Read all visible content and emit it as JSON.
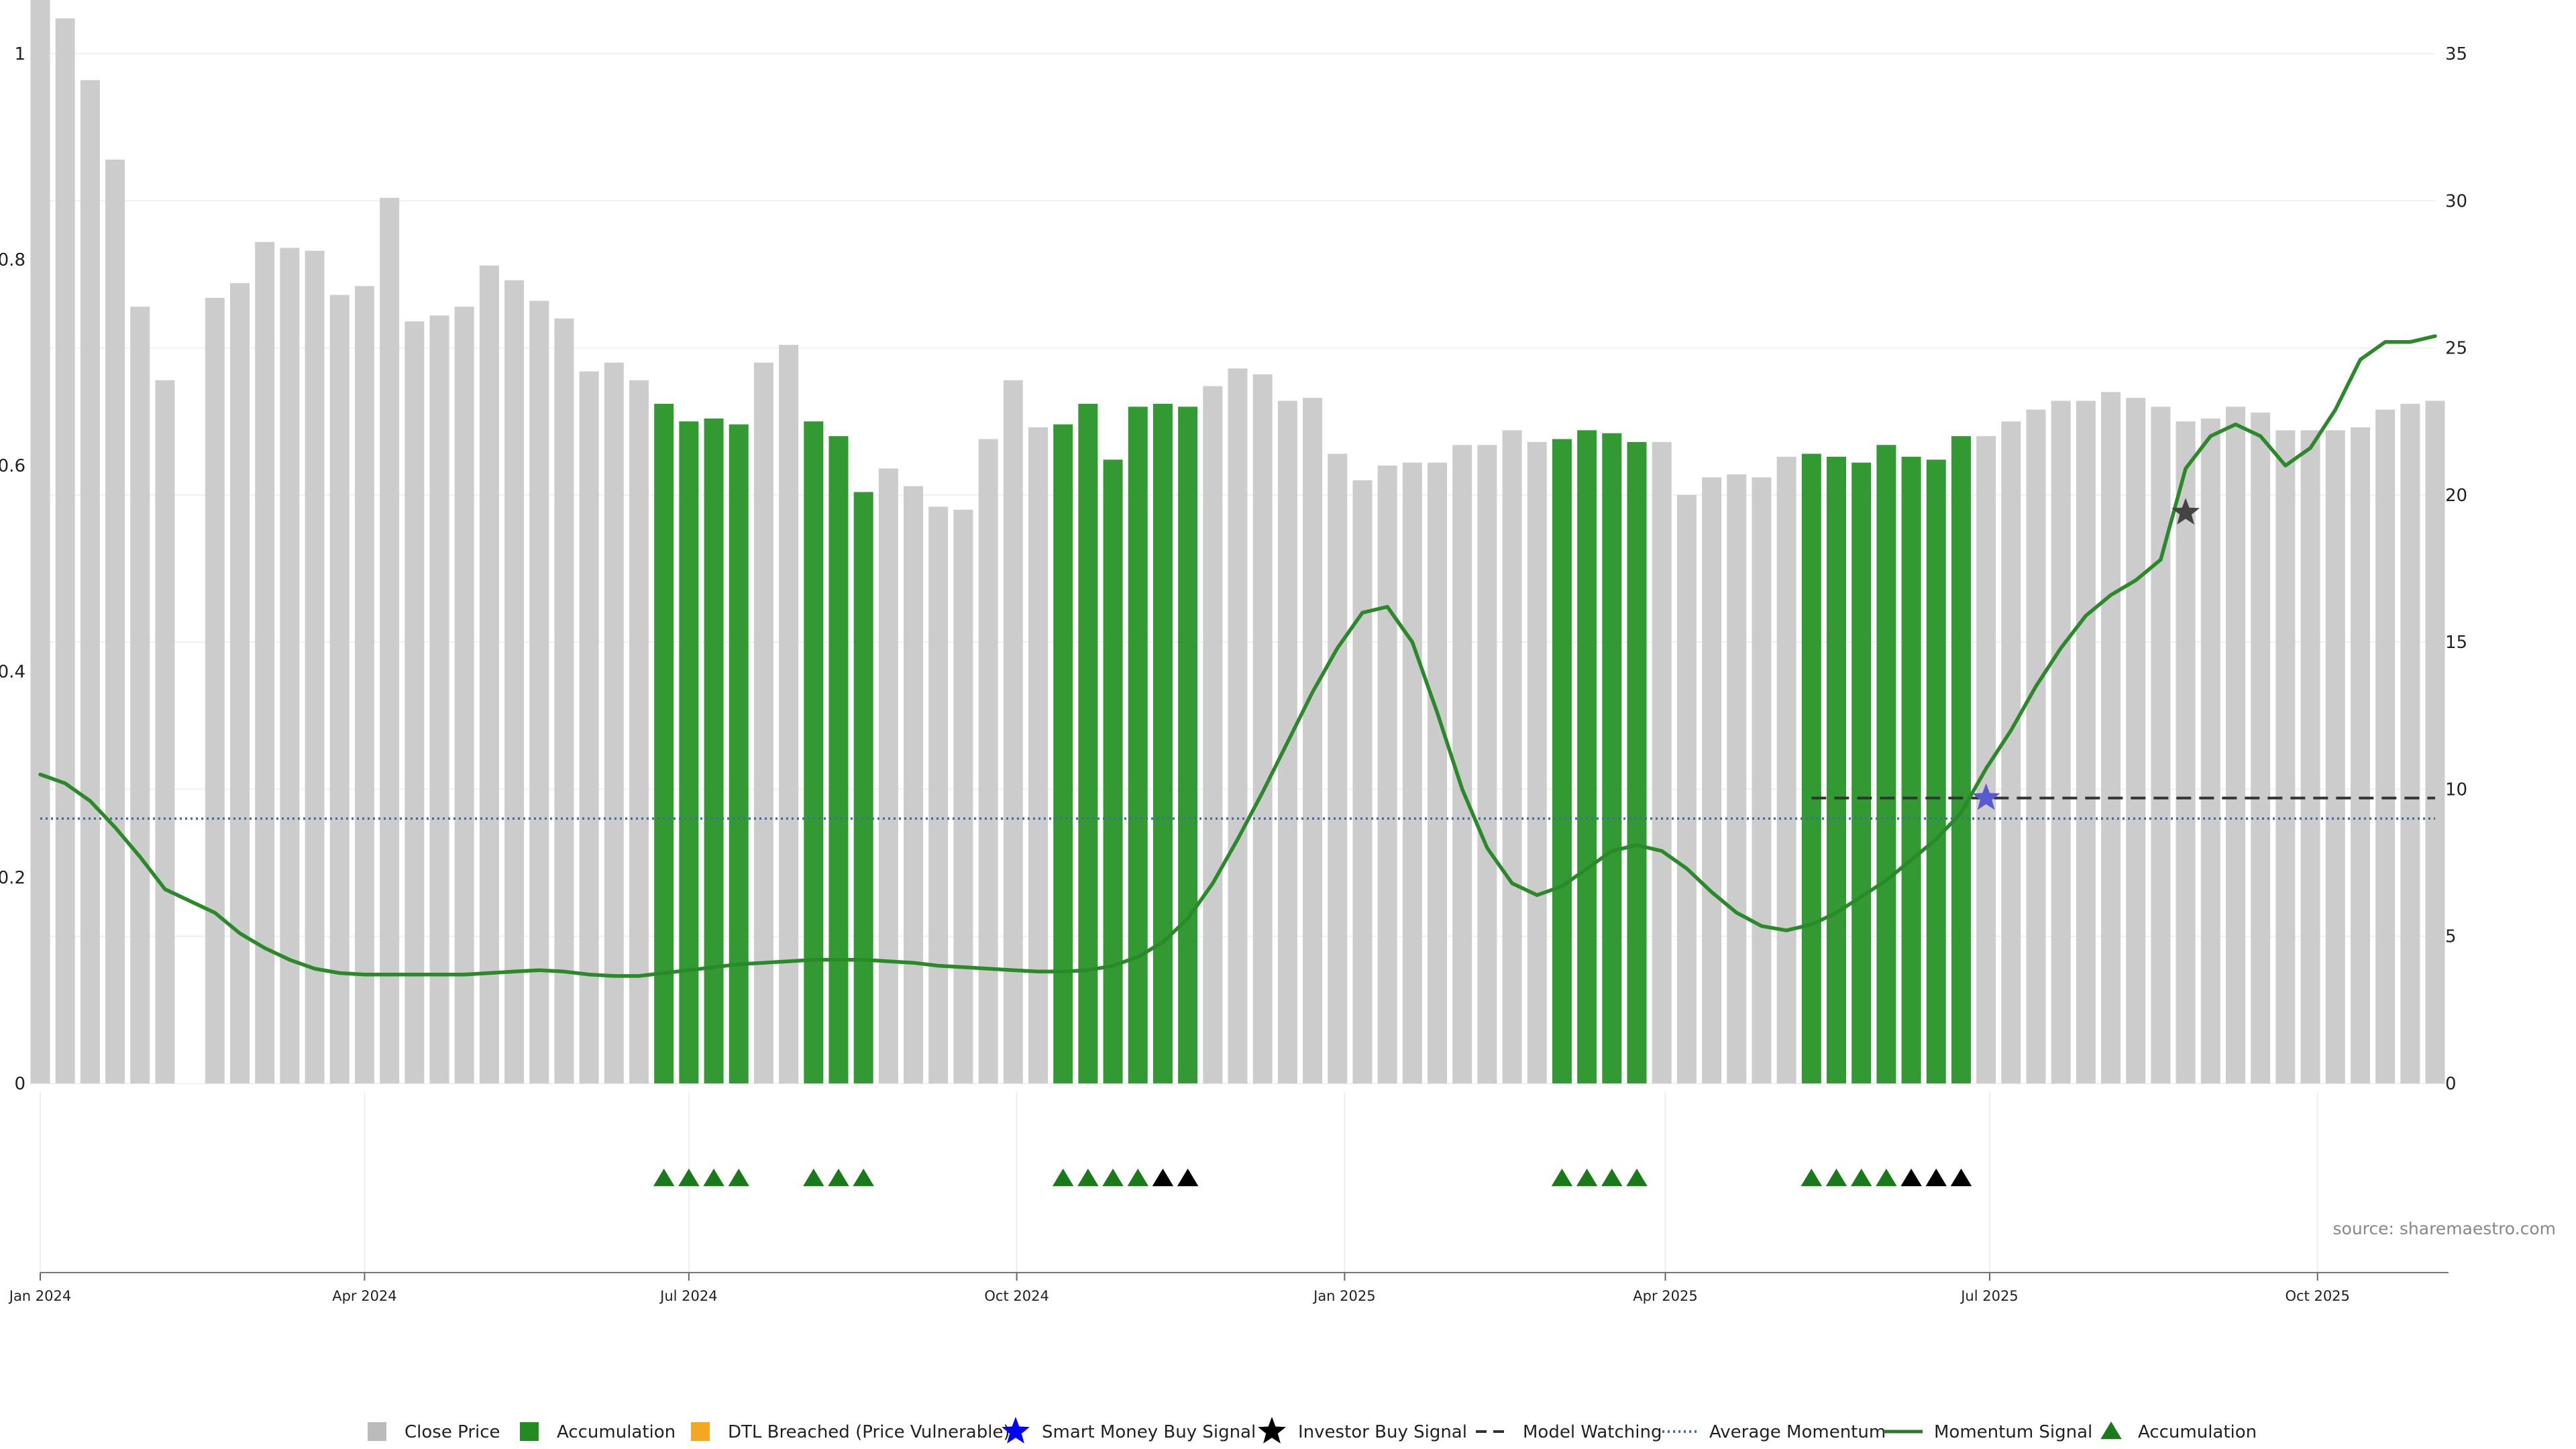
{
  "source_text": "source: sharemaestro.com",
  "colors": {
    "close_price": "#cccccc",
    "accumulation": "#339933",
    "dtl_breached": "#f5a623",
    "smart_money": "#0000ff",
    "smart_money_marker": "#5a5ad0",
    "investor": "#000000",
    "investor_marker": "#444444",
    "model_watching": "#333333",
    "avg_momentum": "#3f6f9f",
    "momentum": "#2a8a2a",
    "accum_triangle": "#1a7a1a",
    "black_triangle": "#000000"
  },
  "legend": [
    {
      "label": "Close Price",
      "symbol": "square",
      "color": "#bbbbbb"
    },
    {
      "label": "Accumulation",
      "symbol": "square",
      "color": "#228b22"
    },
    {
      "label": "DTL Breached (Price Vulnerable)",
      "symbol": "square",
      "color": "#f5a623"
    },
    {
      "label": "Smart Money Buy Signal",
      "symbol": "star",
      "color": "#0000ff"
    },
    {
      "label": "Investor Buy Signal",
      "symbol": "star",
      "color": "#000000"
    },
    {
      "label": "Model Watching",
      "symbol": "dash",
      "color": "#333333"
    },
    {
      "label": "Average Momentum",
      "symbol": "dot",
      "color": "#3f6f9f"
    },
    {
      "label": "Momentum Signal",
      "symbol": "line",
      "color": "#2a7a2a"
    },
    {
      "label": "Accumulation",
      "symbol": "triangle",
      "color": "#1a7a1a"
    }
  ],
  "chart_data": {
    "type": "bar",
    "title": "",
    "xlabel": "",
    "ylabel": "",
    "grid": true,
    "legend_position": "bottom",
    "weeks_start": "2024-01-01",
    "left_axis": {
      "ylim": [
        0,
        1
      ],
      "ticks": [
        "0",
        "0.2",
        "0.4",
        "0.6",
        "0.8",
        "1"
      ]
    },
    "right_axis": {
      "ylim": [
        0,
        35
      ],
      "ticks": [
        "0",
        "5",
        "10",
        "15",
        "20",
        "25",
        "30",
        "35"
      ]
    },
    "x_tick_labels": [
      {
        "label": "Jan 2024",
        "date": "2024-01-01"
      },
      {
        "label": "Apr 2024",
        "date": "2024-04-01"
      },
      {
        "label": "Jul 2024",
        "date": "2024-07-01"
      },
      {
        "label": "Oct 2024",
        "date": "2024-10-01"
      },
      {
        "label": "Jan 2025",
        "date": "2025-01-01"
      },
      {
        "label": "Apr 2025",
        "date": "2025-04-01"
      },
      {
        "label": "Jul 2025",
        "date": "2025-07-01"
      },
      {
        "label": "Oct 2025",
        "date": "2025-10-01"
      }
    ],
    "close_price_weekly": [
      36.9,
      36.2,
      34.1,
      31.4,
      26.4,
      23.9,
      null,
      26.7,
      27.2,
      28.6,
      28.4,
      28.3,
      26.8,
      27.1,
      30.1,
      25.9,
      26.1,
      26.4,
      27.8,
      27.3,
      26.6,
      26.0,
      24.2,
      24.5,
      23.9,
      23.1,
      22.5,
      22.6,
      22.4,
      24.5,
      25.1,
      22.5,
      22.0,
      20.1,
      20.9,
      20.3,
      19.6,
      19.5,
      21.9,
      23.9,
      22.3,
      22.4,
      23.1,
      21.2,
      23.0,
      23.1,
      23.0,
      23.7,
      24.3,
      24.1,
      23.2,
      23.3,
      21.4,
      20.5,
      21.0,
      21.1,
      21.1,
      21.7,
      21.7,
      22.2,
      21.8,
      21.9,
      22.2,
      22.1,
      21.8,
      21.8,
      20.0,
      20.6,
      20.7,
      20.6,
      21.3,
      21.4,
      21.3,
      21.1,
      21.7,
      21.3,
      21.2,
      22.0,
      22.0,
      22.5,
      22.9,
      23.2,
      23.2,
      23.5,
      23.3,
      23.0,
      22.5,
      22.6,
      23.0,
      22.8,
      22.2,
      22.2,
      22.2,
      22.3,
      22.9,
      23.1,
      23.2
    ],
    "accumulation_weeks": [
      25,
      26,
      27,
      28,
      31,
      32,
      33,
      41,
      42,
      43,
      44,
      45,
      46,
      61,
      62,
      63,
      64,
      71,
      72,
      73,
      74,
      75,
      76,
      77
    ],
    "accumulation_triangles_green": [
      25,
      26,
      27,
      28,
      31,
      32,
      33,
      41,
      42,
      43,
      44,
      61,
      62,
      63,
      64,
      71,
      72,
      73,
      74
    ],
    "accumulation_triangles_black": [
      45,
      46,
      75,
      76,
      77
    ],
    "momentum_signal": [
      [
        0,
        10.5
      ],
      [
        1,
        10.2
      ],
      [
        2,
        9.6
      ],
      [
        3,
        8.7
      ],
      [
        4,
        7.7
      ],
      [
        5,
        6.6
      ],
      [
        6,
        6.2
      ],
      [
        7,
        5.8
      ],
      [
        8,
        5.1
      ],
      [
        9,
        4.6
      ],
      [
        10,
        4.2
      ],
      [
        11,
        3.9
      ],
      [
        12,
        3.75
      ],
      [
        13,
        3.7
      ],
      [
        14,
        3.7
      ],
      [
        15,
        3.7
      ],
      [
        16,
        3.7
      ],
      [
        17,
        3.7
      ],
      [
        18,
        3.75
      ],
      [
        19,
        3.8
      ],
      [
        20,
        3.85
      ],
      [
        21,
        3.8
      ],
      [
        22,
        3.7
      ],
      [
        23,
        3.65
      ],
      [
        24,
        3.65
      ],
      [
        25,
        3.75
      ],
      [
        26,
        3.85
      ],
      [
        27,
        3.95
      ],
      [
        28,
        4.05
      ],
      [
        29,
        4.1
      ],
      [
        30,
        4.15
      ],
      [
        31,
        4.2
      ],
      [
        32,
        4.2
      ],
      [
        33,
        4.2
      ],
      [
        34,
        4.15
      ],
      [
        35,
        4.1
      ],
      [
        36,
        4.0
      ],
      [
        37,
        3.95
      ],
      [
        38,
        3.9
      ],
      [
        39,
        3.85
      ],
      [
        40,
        3.8
      ],
      [
        41,
        3.8
      ],
      [
        42,
        3.85
      ],
      [
        43,
        4.0
      ],
      [
        44,
        4.3
      ],
      [
        45,
        4.8
      ],
      [
        46,
        5.6
      ],
      [
        47,
        6.8
      ],
      [
        48,
        8.3
      ],
      [
        49,
        9.9
      ],
      [
        50,
        11.6
      ],
      [
        51,
        13.3
      ],
      [
        52,
        14.8
      ],
      [
        53,
        16.0
      ],
      [
        54,
        16.2
      ],
      [
        55,
        15.0
      ],
      [
        56,
        12.6
      ],
      [
        57,
        10.0
      ],
      [
        58,
        8.0
      ],
      [
        59,
        6.8
      ],
      [
        60,
        6.4
      ],
      [
        61,
        6.7
      ],
      [
        62,
        7.3
      ],
      [
        63,
        7.9
      ],
      [
        64,
        8.1
      ],
      [
        65,
        7.9
      ],
      [
        66,
        7.3
      ],
      [
        67,
        6.5
      ],
      [
        68,
        5.8
      ],
      [
        69,
        5.35
      ],
      [
        70,
        5.2
      ],
      [
        71,
        5.4
      ],
      [
        72,
        5.8
      ],
      [
        73,
        6.35
      ],
      [
        74,
        6.9
      ],
      [
        75,
        7.6
      ],
      [
        76,
        8.3
      ],
      [
        77,
        9.2
      ],
      [
        78,
        10.7
      ],
      [
        79,
        12.0
      ],
      [
        80,
        13.5
      ],
      [
        81,
        14.8
      ],
      [
        82,
        15.9
      ],
      [
        83,
        16.6
      ],
      [
        84,
        17.1
      ],
      [
        85,
        17.8
      ],
      [
        86,
        20.9
      ],
      [
        87,
        22.0
      ],
      [
        88,
        22.4
      ],
      [
        89,
        22.0
      ],
      [
        90,
        21.0
      ],
      [
        91,
        21.6
      ],
      [
        92,
        22.9
      ],
      [
        93,
        24.6
      ],
      [
        94,
        25.2
      ],
      [
        95,
        25.2
      ],
      [
        96,
        25.4
      ]
    ],
    "average_momentum": 9.0,
    "model_watching": {
      "from_week": 71,
      "to_week": 96,
      "value": 9.7
    },
    "smart_money_signal": {
      "week": 78,
      "value": 9.7
    },
    "investor_signal": {
      "week": 86,
      "value": 19.4
    }
  }
}
